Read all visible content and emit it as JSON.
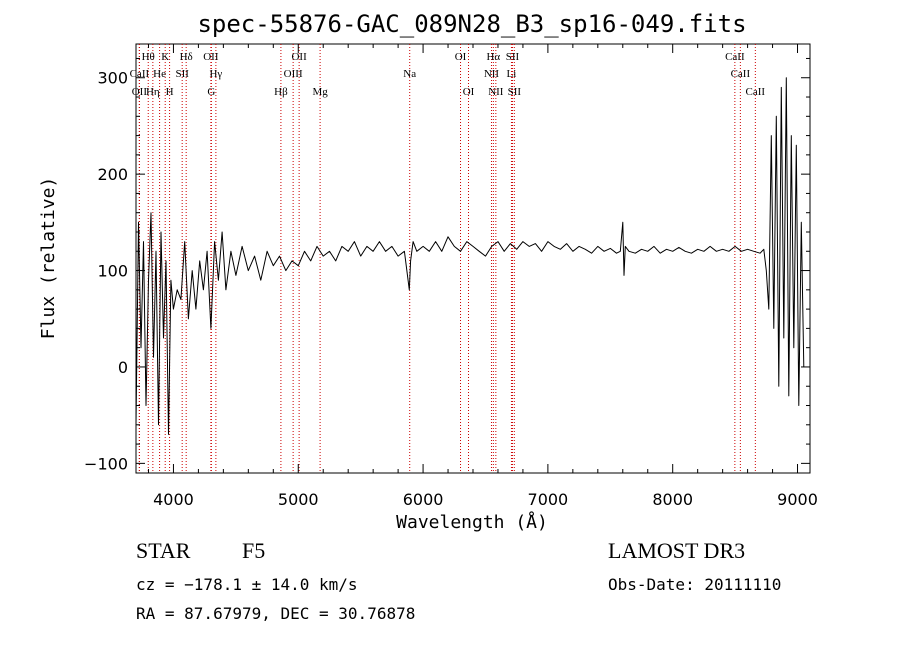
{
  "chart_data": {
    "type": "line",
    "title": "spec-55876-GAC_089N28_B3_sp16-049.fits",
    "xlabel": "Wavelength (Å)",
    "ylabel": "Flux (relative)",
    "xlim": [
      3700,
      9100
    ],
    "ylim": [
      -110,
      335
    ],
    "x_ticks": [
      4000,
      5000,
      6000,
      7000,
      8000,
      9000
    ],
    "x_tick_labels": [
      "4000",
      "5000",
      "6000",
      "7000",
      "8000",
      "9000"
    ],
    "y_ticks": [
      -100,
      0,
      100,
      200,
      300
    ],
    "y_tick_labels": [
      "−100",
      "0",
      "100",
      "200",
      "300"
    ],
    "grid": false,
    "lines": [
      {
        "label": "Hθ",
        "x": 3798,
        "row": 0
      },
      {
        "label": "K",
        "x": 3934,
        "row": 0
      },
      {
        "label": "Hδ",
        "x": 4102,
        "row": 0
      },
      {
        "label": "OII",
        "x": 4300,
        "row": 0
      },
      {
        "label": "OII",
        "x": 5007,
        "row": 0
      },
      {
        "label": "OI",
        "x": 6300,
        "row": 0
      },
      {
        "label": "Hα",
        "x": 6563,
        "row": 0
      },
      {
        "label": "SII",
        "x": 6716,
        "row": 0
      },
      {
        "label": "CaII",
        "x": 8498,
        "row": 0
      },
      {
        "label": "CaII",
        "x": 3727,
        "row": 1
      },
      {
        "label": "He",
        "x": 3889,
        "row": 1
      },
      {
        "label": "SII",
        "x": 4070,
        "row": 1
      },
      {
        "label": "Hγ",
        "x": 4340,
        "row": 1
      },
      {
        "label": "OIII",
        "x": 4959,
        "row": 1
      },
      {
        "label": "Na",
        "x": 5893,
        "row": 1
      },
      {
        "label": "NII",
        "x": 6548,
        "row": 1
      },
      {
        "label": "Li",
        "x": 6708,
        "row": 1
      },
      {
        "label": "CaII",
        "x": 8542,
        "row": 1
      },
      {
        "label": "OII",
        "x": 3727,
        "row": 2
      },
      {
        "label": "Hη",
        "x": 3835,
        "row": 2
      },
      {
        "label": "H",
        "x": 3969,
        "row": 2
      },
      {
        "label": "G",
        "x": 4304,
        "row": 2
      },
      {
        "label": "Hβ",
        "x": 4861,
        "row": 2
      },
      {
        "label": "Mg",
        "x": 5175,
        "row": 2
      },
      {
        "label": "OI",
        "x": 6364,
        "row": 2
      },
      {
        "label": "NII",
        "x": 6583,
        "row": 2
      },
      {
        "label": "SII",
        "x": 6731,
        "row": 2
      },
      {
        "label": "CaII",
        "x": 8662,
        "row": 2
      }
    ],
    "series": [
      {
        "x": [
          3700,
          3720,
          3740,
          3760,
          3780,
          3800,
          3820,
          3840,
          3860,
          3880,
          3900,
          3920,
          3940,
          3960,
          3980,
          4000,
          4030,
          4060,
          4090,
          4120,
          4150,
          4180,
          4210,
          4240,
          4270,
          4300,
          4330,
          4360,
          4390,
          4420,
          4460,
          4500,
          4550,
          4600,
          4650,
          4700,
          4750,
          4800,
          4850,
          4900,
          4950,
          5000,
          5050,
          5100,
          5150,
          5200,
          5250,
          5300,
          5350,
          5400,
          5450,
          5500,
          5550,
          5600,
          5650,
          5700,
          5750,
          5800,
          5850,
          5890,
          5900,
          5920,
          5950,
          6000,
          6050,
          6100,
          6150,
          6200,
          6250,
          6300,
          6350,
          6400,
          6450,
          6500,
          6550,
          6600,
          6650,
          6700,
          6750,
          6800,
          6850,
          6900,
          6950,
          7000,
          7050,
          7100,
          7150,
          7200,
          7250,
          7300,
          7350,
          7400,
          7450,
          7500,
          7550,
          7580,
          7600,
          7610,
          7620,
          7650,
          7700,
          7750,
          7800,
          7850,
          7900,
          7950,
          8000,
          8050,
          8100,
          8150,
          8200,
          8250,
          8300,
          8350,
          8400,
          8450,
          8500,
          8550,
          8600,
          8650,
          8700,
          8730,
          8750,
          8770,
          8790,
          8810,
          8830,
          8850,
          8870,
          8890,
          8910,
          8930,
          8950,
          8970,
          8990,
          9010,
          9030,
          9050
        ],
        "y": [
          -60,
          150,
          20,
          130,
          -40,
          90,
          160,
          10,
          120,
          -60,
          140,
          30,
          110,
          -70,
          90,
          60,
          80,
          70,
          130,
          50,
          100,
          60,
          110,
          80,
          120,
          40,
          130,
          90,
          140,
          80,
          120,
          95,
          125,
          100,
          115,
          90,
          120,
          105,
          115,
          100,
          110,
          105,
          120,
          110,
          125,
          115,
          120,
          110,
          125,
          120,
          130,
          115,
          125,
          120,
          130,
          120,
          125,
          115,
          120,
          80,
          110,
          130,
          120,
          125,
          120,
          130,
          120,
          135,
          125,
          120,
          130,
          125,
          120,
          115,
          125,
          130,
          120,
          128,
          122,
          130,
          125,
          128,
          120,
          130,
          125,
          122,
          128,
          120,
          125,
          122,
          118,
          125,
          120,
          123,
          118,
          120,
          150,
          95,
          125,
          120,
          118,
          122,
          120,
          125,
          118,
          122,
          120,
          124,
          120,
          118,
          122,
          120,
          125,
          120,
          122,
          120,
          125,
          120,
          122,
          120,
          118,
          122,
          100,
          60,
          240,
          40,
          260,
          -20,
          290,
          30,
          300,
          -30,
          240,
          20,
          230,
          -40,
          150,
          0
        ]
      }
    ],
    "footer": {
      "object_class": "STAR",
      "subclass": "F5",
      "survey": "LAMOST DR3",
      "redshift_text": "cz = −178.1 ± 14.0 km/s",
      "obs_date_text": "Obs-Date: 20111110",
      "coords_text": "RA =  87.67979, DEC =  30.76878"
    },
    "colors": {
      "spectrum": "#000000",
      "line_markers": "#cc0000",
      "background": "#ffffff"
    }
  }
}
